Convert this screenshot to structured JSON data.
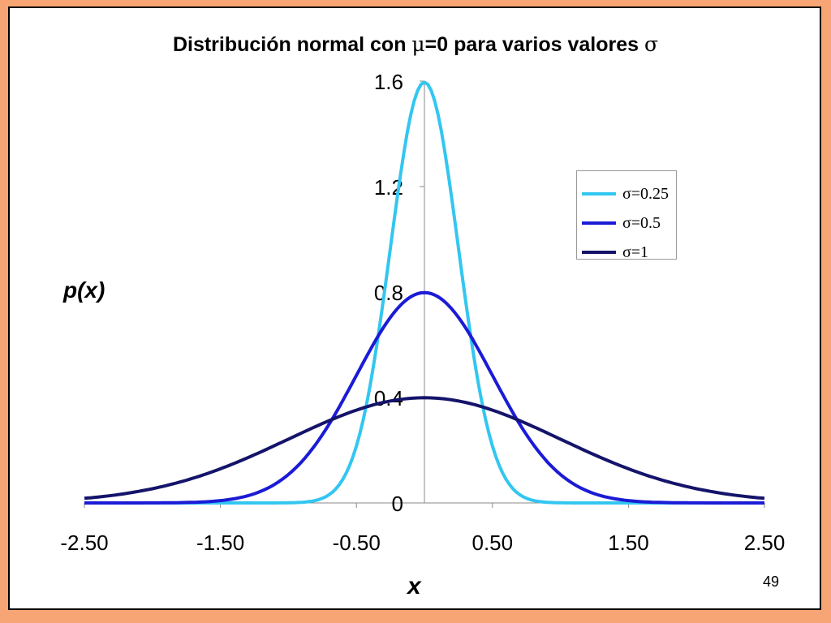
{
  "slide": {
    "page_number": "49"
  },
  "chart_data": {
    "type": "line",
    "title_text": "Distribución normal con ",
    "title_mu": "μ",
    "title_middle": "=0 para varios valores ",
    "title_sigma": "σ",
    "xlabel": "x",
    "ylabel": "p(x)",
    "xlim": [
      -2.5,
      2.5
    ],
    "ylim": [
      0,
      1.6
    ],
    "x_ticks": [
      "-2.50",
      "-1.50",
      "-0.50",
      "0.50",
      "1.50",
      "2.50"
    ],
    "x_tick_values": [
      -2.5,
      -1.5,
      -0.5,
      0.5,
      1.5,
      2.5
    ],
    "y_ticks": [
      "0",
      "0.4",
      "0.8",
      "1.2",
      "1.6"
    ],
    "y_tick_values": [
      0,
      0.4,
      0.8,
      1.2,
      1.6
    ],
    "grid": false,
    "legend_position": "right",
    "mean": 0,
    "x_range_sampled": [
      -2.5,
      2.5
    ],
    "series": [
      {
        "name": "σ=0.25",
        "sigma": 0.25,
        "peak": 1.6,
        "color": "#33c6f0"
      },
      {
        "name": "σ=0.5",
        "sigma": 0.5,
        "peak": 0.8,
        "color": "#1b1bd6"
      },
      {
        "name": "σ=1",
        "sigma": 1,
        "peak": 0.4,
        "color": "#14146b"
      }
    ]
  }
}
